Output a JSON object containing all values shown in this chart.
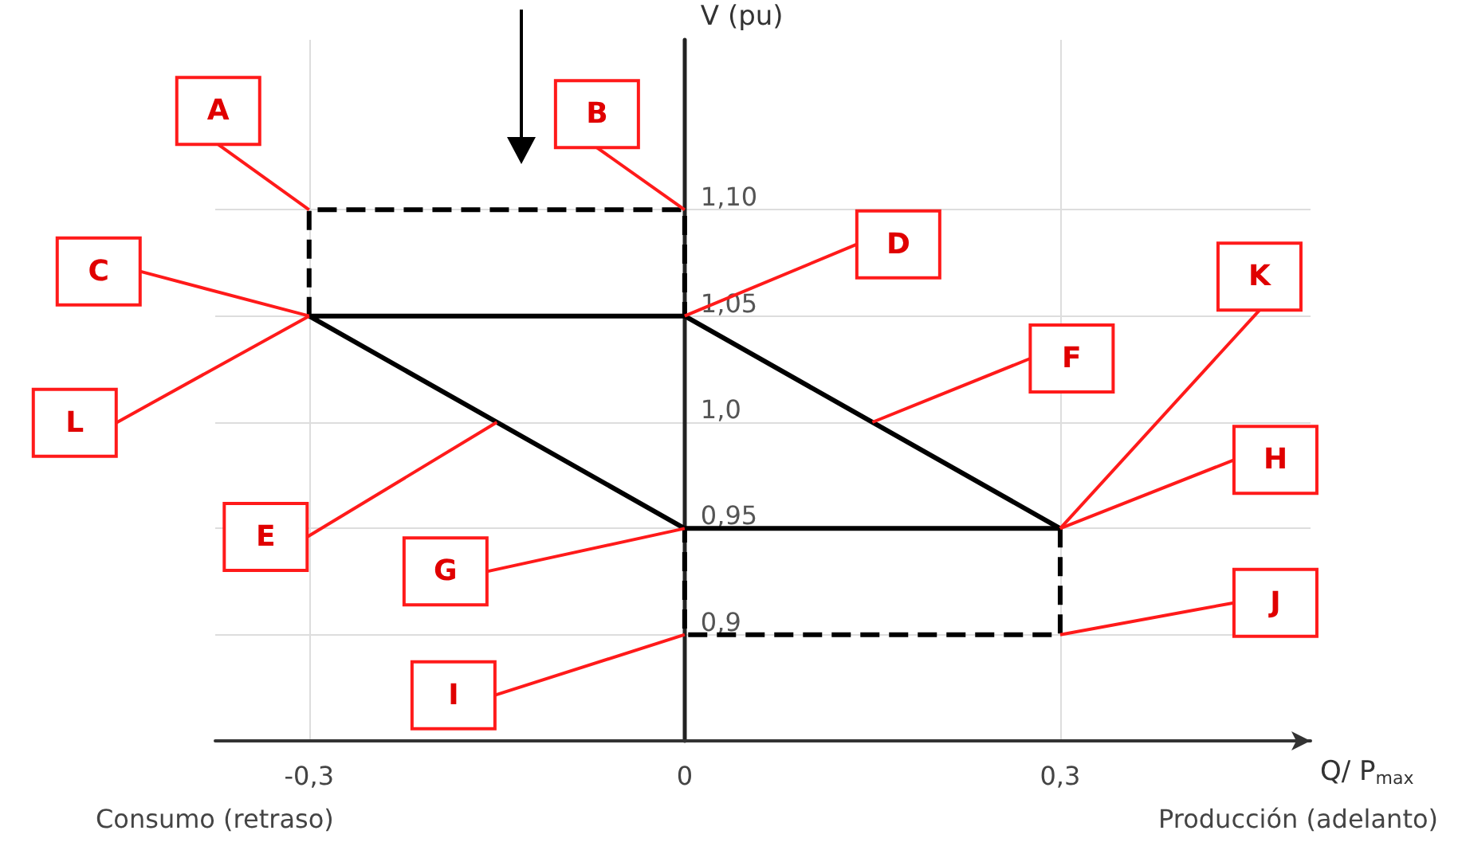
{
  "chart_data": {
    "type": "line",
    "xlabel": "Q/ P$_{max}$",
    "ylabel": "V (pu)",
    "xlim": [
      -0.375,
      0.5
    ],
    "xticks": [
      {
        "value": -0.3,
        "label": "-0,3"
      },
      0,
      {
        "value": 0.3,
        "label": "0,3"
      }
    ],
    "ylim": [
      0.85,
      1.18
    ],
    "yticks": [
      {
        "value": 0.9,
        "label": "0,9"
      },
      {
        "value": 0.95,
        "label": "0,95"
      },
      {
        "value": 1.0,
        "label": "1,0"
      },
      {
        "value": 1.05,
        "label": "1,05"
      },
      {
        "value": 1.1,
        "label": "1,10"
      }
    ],
    "grid": true,
    "marker": "none",
    "series": [
      {
        "color": "#000000",
        "line_style": "solid",
        "x": [
          0,
          -0.3,
          0,
          0.3
        ],
        "values": [
          0.95,
          1.05,
          1.05,
          0.95
        ]
      },
      {
        "color": "#000000",
        "line_style": "solid",
        "x": [
          0,
          0.3
        ],
        "values": [
          0.95,
          0.95
        ]
      },
      {
        "color": "#000000",
        "line_style": "dashed",
        "x": [
          -0.3,
          -0.3,
          0,
          0
        ],
        "values": [
          1.05,
          1.1,
          1.1,
          1.05
        ]
      },
      {
        "color": "#000000",
        "line_style": "dashed",
        "x": [
          0.3,
          0.3,
          0,
          0
        ],
        "values": [
          0.95,
          0.9,
          0.9,
          0.95
        ]
      }
    ],
    "annotations": [
      {
        "text": "A",
        "x": -0.3,
        "y": 1.1
      },
      {
        "text": "B",
        "x": 0,
        "y": 1.1
      },
      {
        "text": "C",
        "x": -0.3,
        "y": 1.05
      },
      {
        "text": "D",
        "x": 0,
        "y": 1.05
      },
      {
        "text": "E",
        "x": -0.15,
        "y": 1.0
      },
      {
        "text": "F",
        "x": 0.15,
        "y": 1.0
      },
      {
        "text": "G",
        "x": 0,
        "y": 0.95
      },
      {
        "text": "H",
        "x": 0.3,
        "y": 0.95
      },
      {
        "text": "I",
        "x": 0,
        "y": 0.9
      },
      {
        "text": "J",
        "x": 0.3,
        "y": 0.9
      },
      {
        "text": "K",
        "x": 0.3,
        "y": 0.95
      },
      {
        "text": "L",
        "x": -0.3,
        "y": 1.05
      },
      "Consumo (retraso)",
      "Producción (adelanto)"
    ]
  }
}
